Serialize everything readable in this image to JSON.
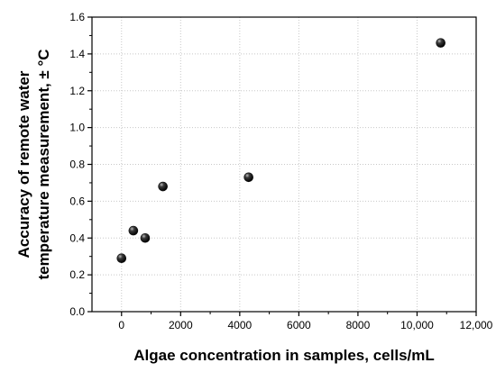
{
  "chart_data": {
    "type": "scatter",
    "xlabel": "Algae concentration in samples, cells/mL",
    "ylabel_line1": "Accuracy of remote water",
    "ylabel_line2": "temperature measurement, ± °C",
    "xlim": [
      -1000,
      12000
    ],
    "ylim": [
      0,
      1.6
    ],
    "x_ticks": [
      0,
      2000,
      4000,
      6000,
      8000,
      10000,
      12000
    ],
    "x_tick_labels": [
      "0",
      "2000",
      "4000",
      "6000",
      "8000",
      "10,000",
      "12,000"
    ],
    "y_ticks": [
      0,
      0.2,
      0.4,
      0.6,
      0.8,
      1.0,
      1.2,
      1.4,
      1.6
    ],
    "y_tick_labels": [
      "0.0",
      "0.2",
      "0.4",
      "0.6",
      "0.8",
      "1.0",
      "1.2",
      "1.4",
      "1.6"
    ],
    "grid": true,
    "grid_style": "dotted",
    "marker_color": "#111111",
    "points": [
      {
        "x": 0,
        "y": 0.29
      },
      {
        "x": 400,
        "y": 0.44
      },
      {
        "x": 800,
        "y": 0.4
      },
      {
        "x": 1400,
        "y": 0.68
      },
      {
        "x": 4300,
        "y": 0.73
      },
      {
        "x": 10800,
        "y": 1.46
      }
    ]
  }
}
